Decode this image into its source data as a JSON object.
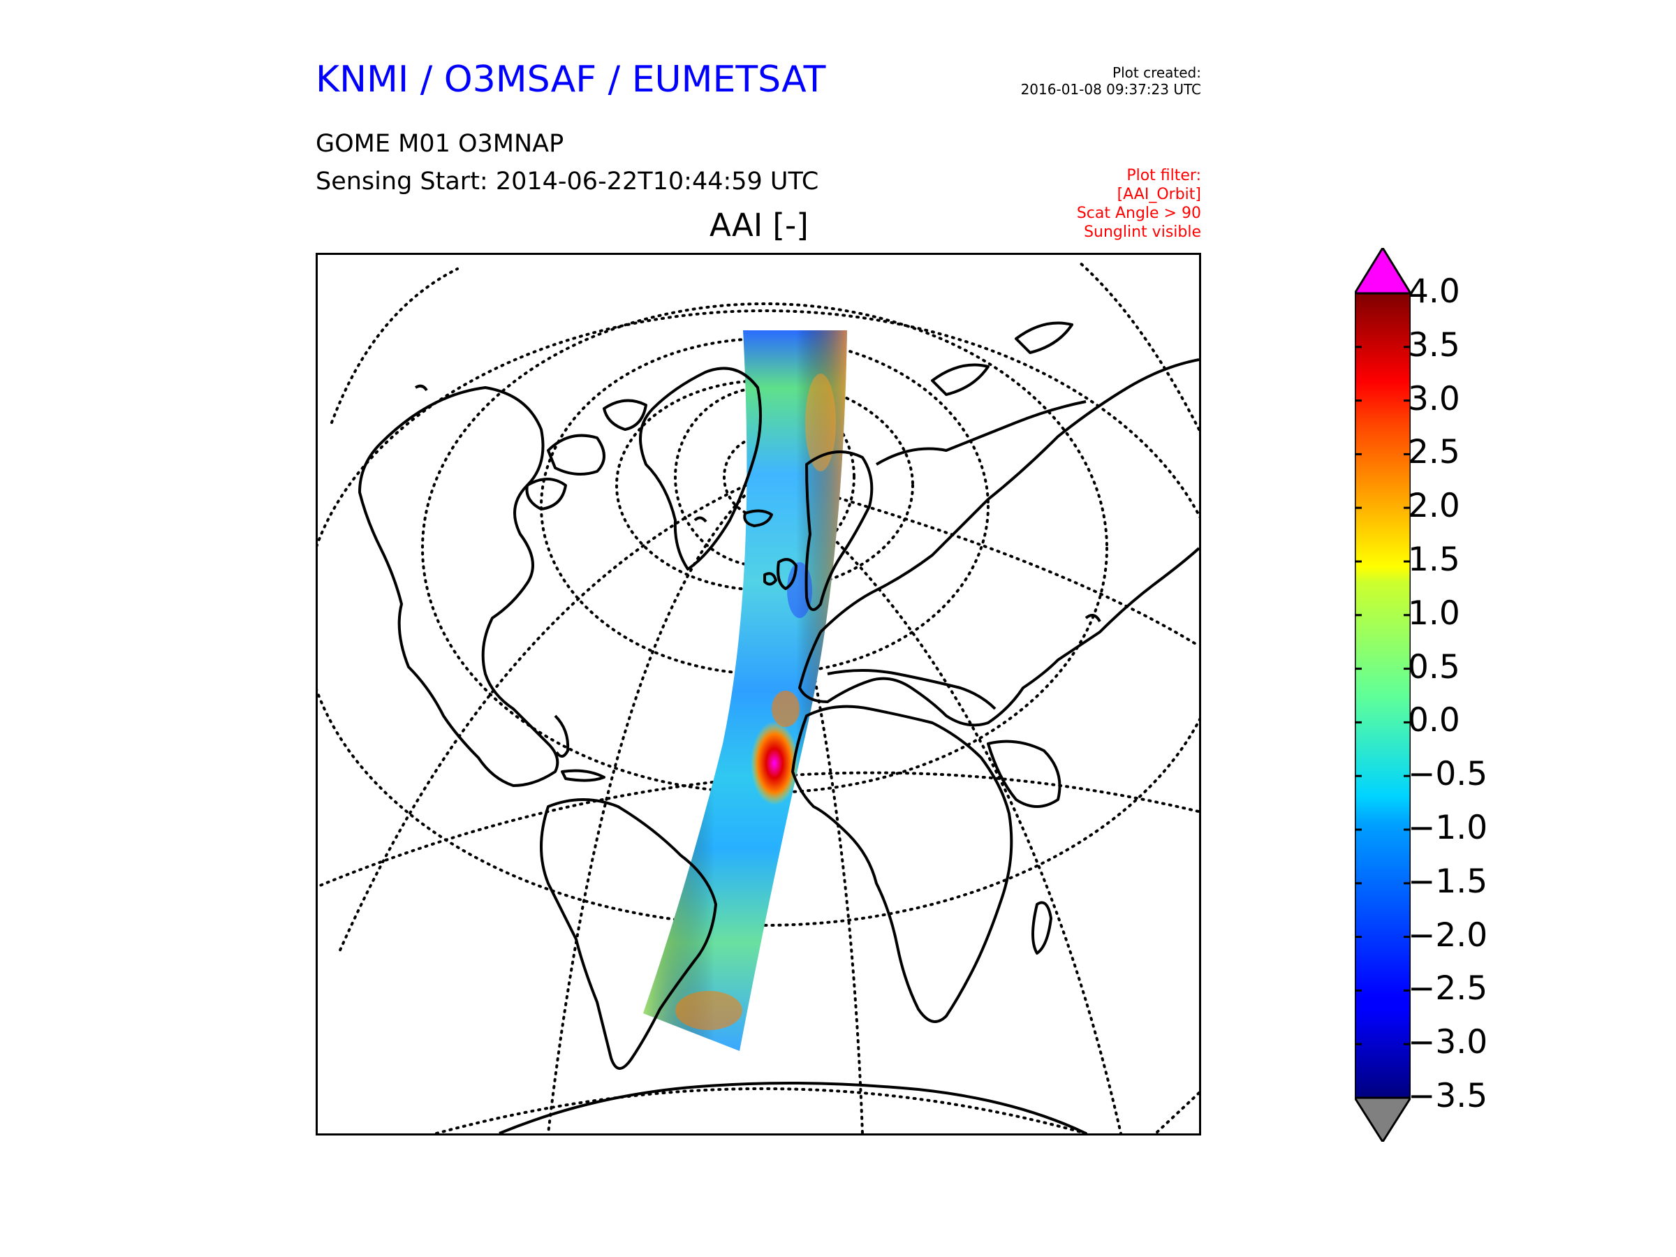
{
  "header": {
    "org_title": "KNMI / O3MSAF / EUMETSAT",
    "plot_created_label": "Plot created:",
    "plot_created_value": "2016-01-08 09:37:23 UTC",
    "product": "GOME M01 O3MNAP",
    "sensing_start": "Sensing Start: 2014-06-22T10:44:59 UTC",
    "plot_filter_lines": [
      "Plot filter:",
      "[AAI_Orbit]",
      "Scat Angle > 90",
      "Sunglint visible"
    ]
  },
  "map": {
    "title": "AAI [-]",
    "projection": "orthographic",
    "graticule": "dotted",
    "coastline_color": "#000000",
    "swath_colormap": "jet"
  },
  "colorbar": {
    "min": -3.5,
    "max": 4.0,
    "tick_labels": [
      "4.0",
      "3.5",
      "3.0",
      "2.5",
      "2.0",
      "1.5",
      "1.0",
      "0.5",
      "0.0",
      "−0.5",
      "−1.0",
      "−1.5",
      "−2.0",
      "−2.5",
      "−3.0",
      "−3.5"
    ],
    "over_color": "#ff00ff",
    "under_color": "#808080",
    "colormap": "jet"
  }
}
